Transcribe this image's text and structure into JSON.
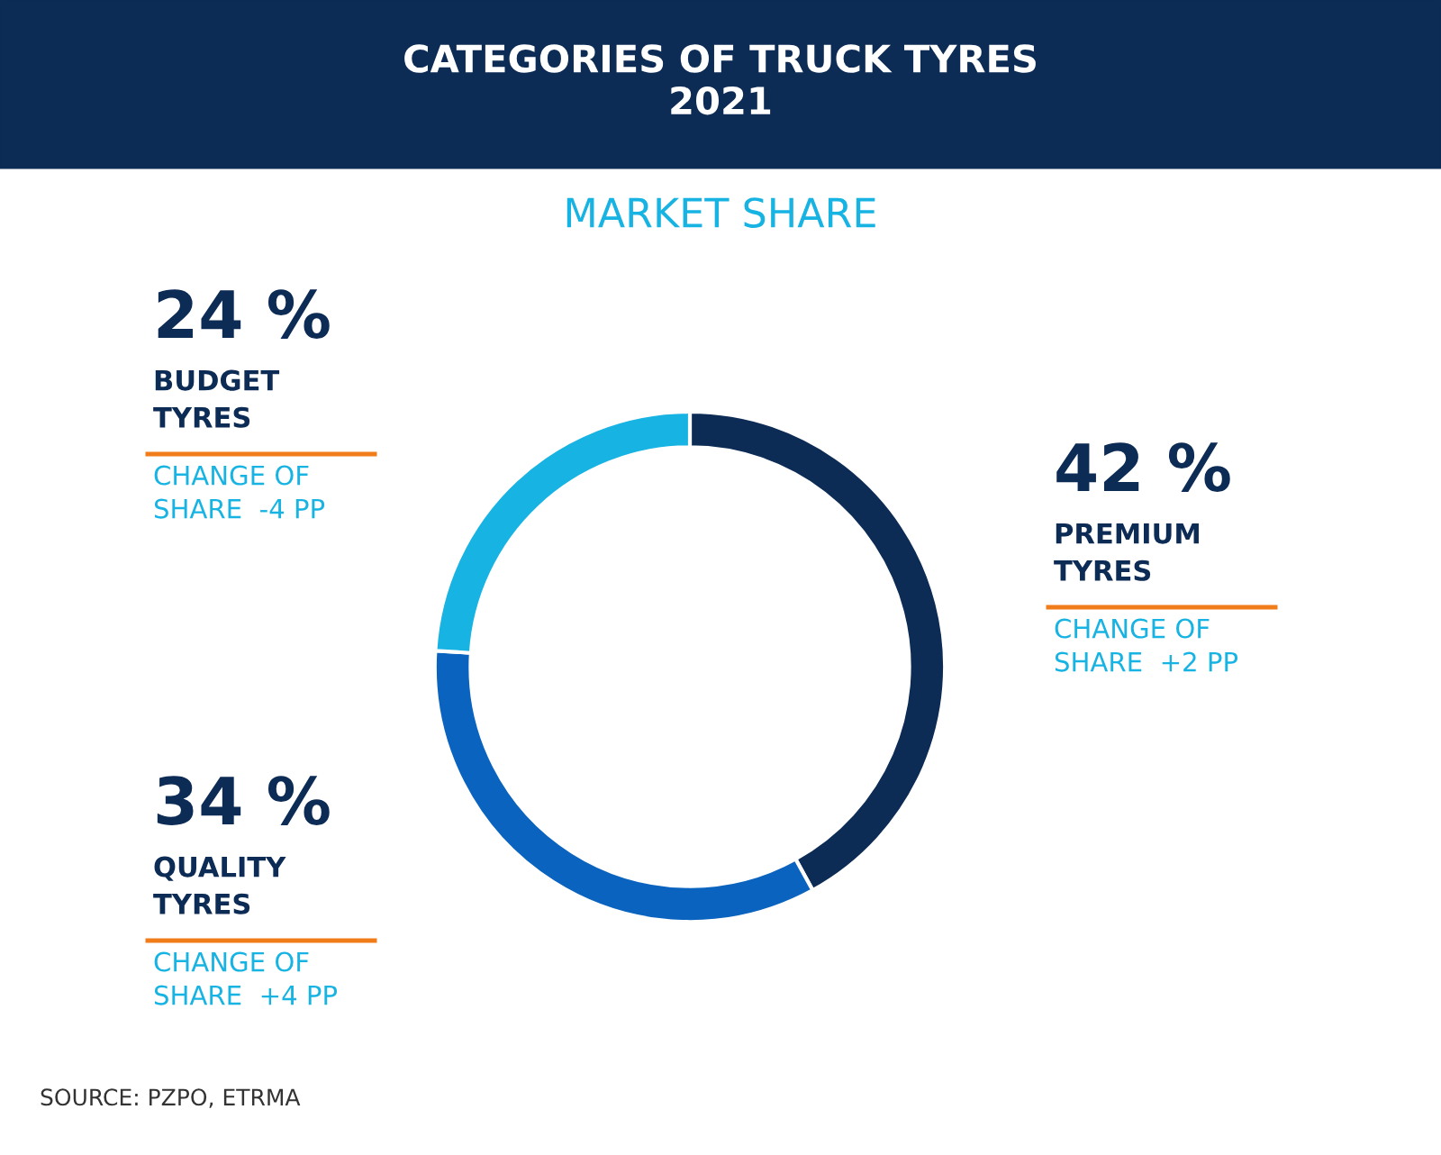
{
  "chart_data": {
    "type": "donut",
    "title": "CATEGORIES OF TRUCK TYRES\n2021",
    "subtitle": "MARKET SHARE",
    "categories": [
      "PREMIUM TYRES",
      "QUALITY TYRES",
      "BUDGET TYRES"
    ],
    "values": [
      42,
      34,
      24
    ],
    "value_labels": [
      "42 %",
      "34 %",
      "24 %"
    ],
    "colors": [
      "#0c2b55",
      "#0a63bf",
      "#17b3e3"
    ],
    "annotations": [
      "CHANGE OF SHARE  +2 PP",
      "CHANGE OF SHARE  +4 PP",
      "CHANGE OF SHARE  -4 PP",
      "SOURCE: PZPO, ETRMA"
    ],
    "legend": false
  }
}
